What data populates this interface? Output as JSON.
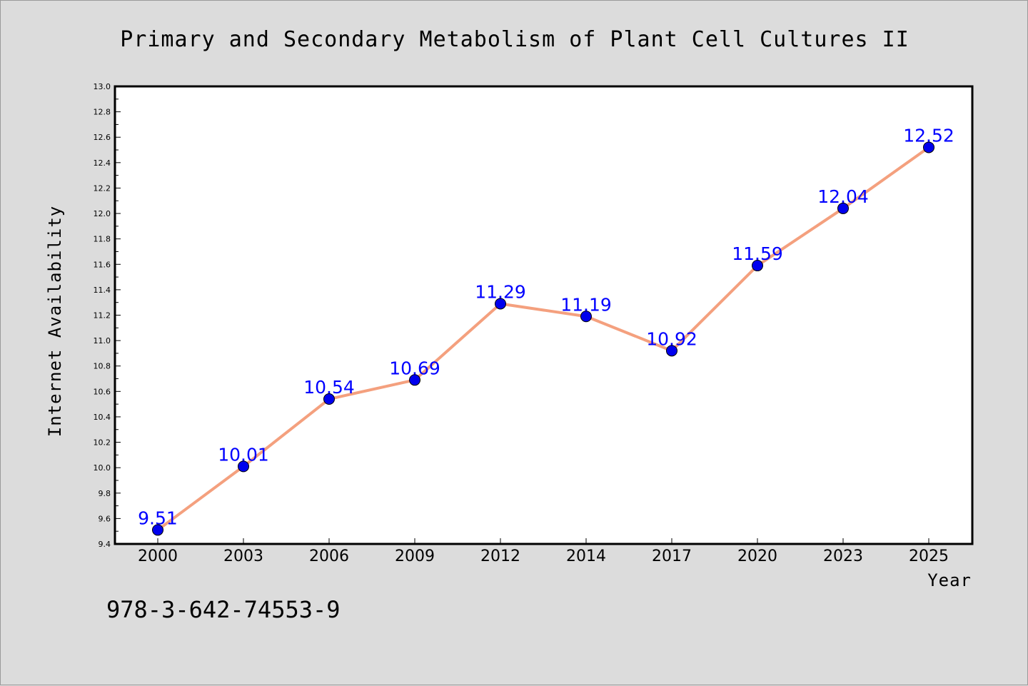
{
  "chart_data": {
    "type": "line",
    "title": "Primary and Secondary Metabolism of Plant Cell Cultures II",
    "xlabel": "Year",
    "ylabel": "Internet Availability",
    "categories": [
      "2000",
      "2003",
      "2006",
      "2009",
      "2012",
      "2014",
      "2017",
      "2020",
      "2023",
      "2025"
    ],
    "series": [
      {
        "values": [
          9.51,
          10.01,
          10.54,
          10.69,
          11.29,
          11.19,
          10.92,
          11.59,
          12.04,
          12.52
        ],
        "labels": [
          "9.51",
          "10.01",
          "10.54",
          "10.69",
          "11.29",
          "11.19",
          "10.92",
          "11.59",
          "12.04",
          "12.52"
        ],
        "line_color": "#f4a07e",
        "marker_color": "#0000ee"
      }
    ],
    "ylim": [
      9.4,
      13.0
    ],
    "yticks": [
      "9.4",
      "9.6",
      "9.8",
      "10.0",
      "10.2",
      "10.4",
      "10.6",
      "10.8",
      "11.0",
      "11.2",
      "11.4",
      "11.6",
      "11.8",
      "12.0",
      "12.2",
      "12.4",
      "12.6",
      "12.8",
      "13.0"
    ],
    "grid": false,
    "legend": "none"
  },
  "footer": {
    "isbn": "978-3-642-74553-9"
  },
  "colors": {
    "background": "#dcdcdc",
    "plot_background": "#ffffff",
    "label_color": "#0000ff"
  }
}
